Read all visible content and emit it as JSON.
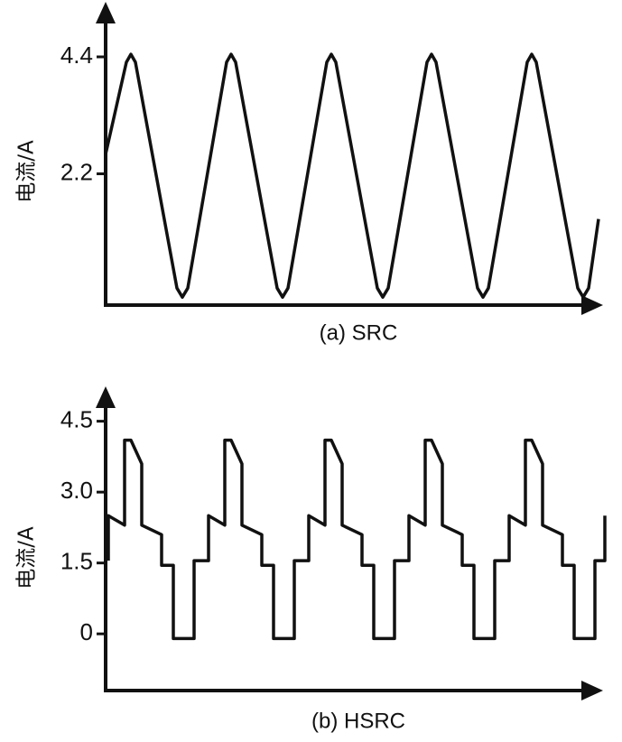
{
  "chart_data": [
    {
      "type": "line",
      "y_label": "电流/A",
      "caption": "(a)  SRC",
      "xlim": [
        0,
        555
      ],
      "ylim": [
        -0.27,
        5.3
      ],
      "yticks": [
        2.2,
        4.4
      ],
      "series": [
        {
          "color": "#111111",
          "x": [
            0,
            23,
            28,
            33,
            79,
            85,
            91,
            134,
            139,
            144,
            190,
            196,
            202,
            245,
            250,
            255,
            301,
            307,
            313,
            356,
            361,
            366,
            412,
            418,
            424,
            467,
            472,
            477,
            523,
            529,
            535,
            546
          ],
          "values": [
            2.57,
            4.3,
            4.45,
            4.3,
            0.05,
            -0.12,
            0.05,
            4.3,
            4.45,
            4.3,
            0.05,
            -0.12,
            0.05,
            4.3,
            4.45,
            4.3,
            0.05,
            -0.12,
            0.05,
            4.3,
            4.45,
            4.3,
            0.05,
            -0.12,
            0.05,
            4.3,
            4.45,
            4.3,
            0.05,
            -0.12,
            0.05,
            1.35
          ]
        }
      ]
    },
    {
      "type": "line",
      "y_label": "电流/A",
      "caption": "(b)  HSRC",
      "xlim": [
        0,
        555
      ],
      "ylim": [
        -1.2,
        5.2
      ],
      "yticks": [
        0,
        1.5,
        {
          "value": 3,
          "label": "3.0"
        },
        4.5
      ],
      "series": [
        {
          "color": "#111111",
          "x": [
            3,
            3,
            21,
            21,
            28,
            40,
            40,
            62,
            62,
            75,
            75,
            98,
            98,
            114,
            114,
            132,
            132,
            139,
            151,
            151,
            173,
            173,
            186,
            186,
            209,
            209,
            225,
            225,
            243,
            243,
            250,
            262,
            262,
            284,
            284,
            297,
            297,
            320,
            320,
            336,
            336,
            354,
            354,
            361,
            373,
            373,
            395,
            395,
            408,
            408,
            431,
            431,
            447,
            447,
            465,
            465,
            472,
            484,
            484,
            506,
            506,
            519,
            519,
            542,
            542,
            553,
            553
          ],
          "values": [
            1.55,
            2.5,
            2.3,
            4.1,
            4.1,
            3.6,
            2.3,
            2.1,
            1.45,
            1.45,
            -0.1,
            -0.1,
            1.55,
            1.55,
            2.5,
            2.3,
            4.1,
            4.1,
            3.6,
            2.3,
            2.1,
            1.45,
            1.45,
            -0.1,
            -0.1,
            1.55,
            1.55,
            2.5,
            2.3,
            4.1,
            4.1,
            3.6,
            2.3,
            2.1,
            1.45,
            1.45,
            -0.1,
            -0.1,
            1.55,
            1.55,
            2.5,
            2.3,
            4.1,
            4.1,
            3.6,
            2.3,
            2.1,
            1.45,
            1.45,
            -0.1,
            -0.1,
            1.55,
            1.55,
            2.5,
            2.3,
            4.1,
            4.1,
            3.6,
            2.3,
            2.1,
            1.45,
            1.45,
            -0.1,
            -0.1,
            1.55,
            1.55,
            2.5
          ]
        }
      ]
    }
  ]
}
